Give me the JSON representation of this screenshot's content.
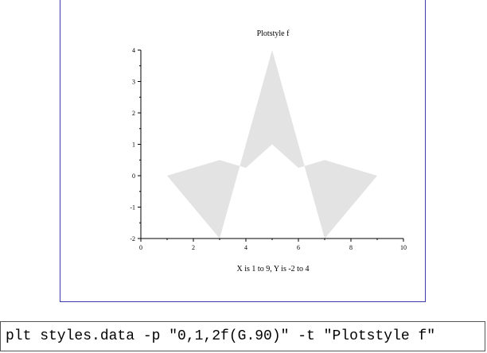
{
  "chart_data": {
    "type": "area",
    "title": "Plotstyle f",
    "xlabel": "X is 1 to 9,  Y is -2 to 4",
    "ylabel": "",
    "xlim": [
      0,
      10
    ],
    "ylim": [
      -2,
      4
    ],
    "x_ticks": [
      0,
      2,
      4,
      6,
      8,
      10
    ],
    "y_ticks": [
      -2,
      -1,
      0,
      1,
      2,
      3,
      4
    ],
    "grid": false,
    "fill_color": "#e3e3e3",
    "series": [
      {
        "x": [
          1,
          2,
          3,
          4,
          5,
          6,
          7,
          8,
          9
        ],
        "values": [
          0,
          0.25,
          0.5,
          0.25,
          1,
          0.25,
          0.5,
          0.25,
          0
        ]
      },
      {
        "x": [
          1,
          2,
          3,
          4,
          5,
          6,
          7,
          8,
          9
        ],
        "values": [
          0,
          -1,
          -2,
          1,
          4,
          1,
          -2,
          -1,
          0
        ]
      }
    ]
  },
  "command": {
    "text": "plt styles.data -p \"0,1,2f(G.90)\" -t \"Plotstyle f\""
  },
  "colors": {
    "frame_border": "#3a3aa8"
  }
}
